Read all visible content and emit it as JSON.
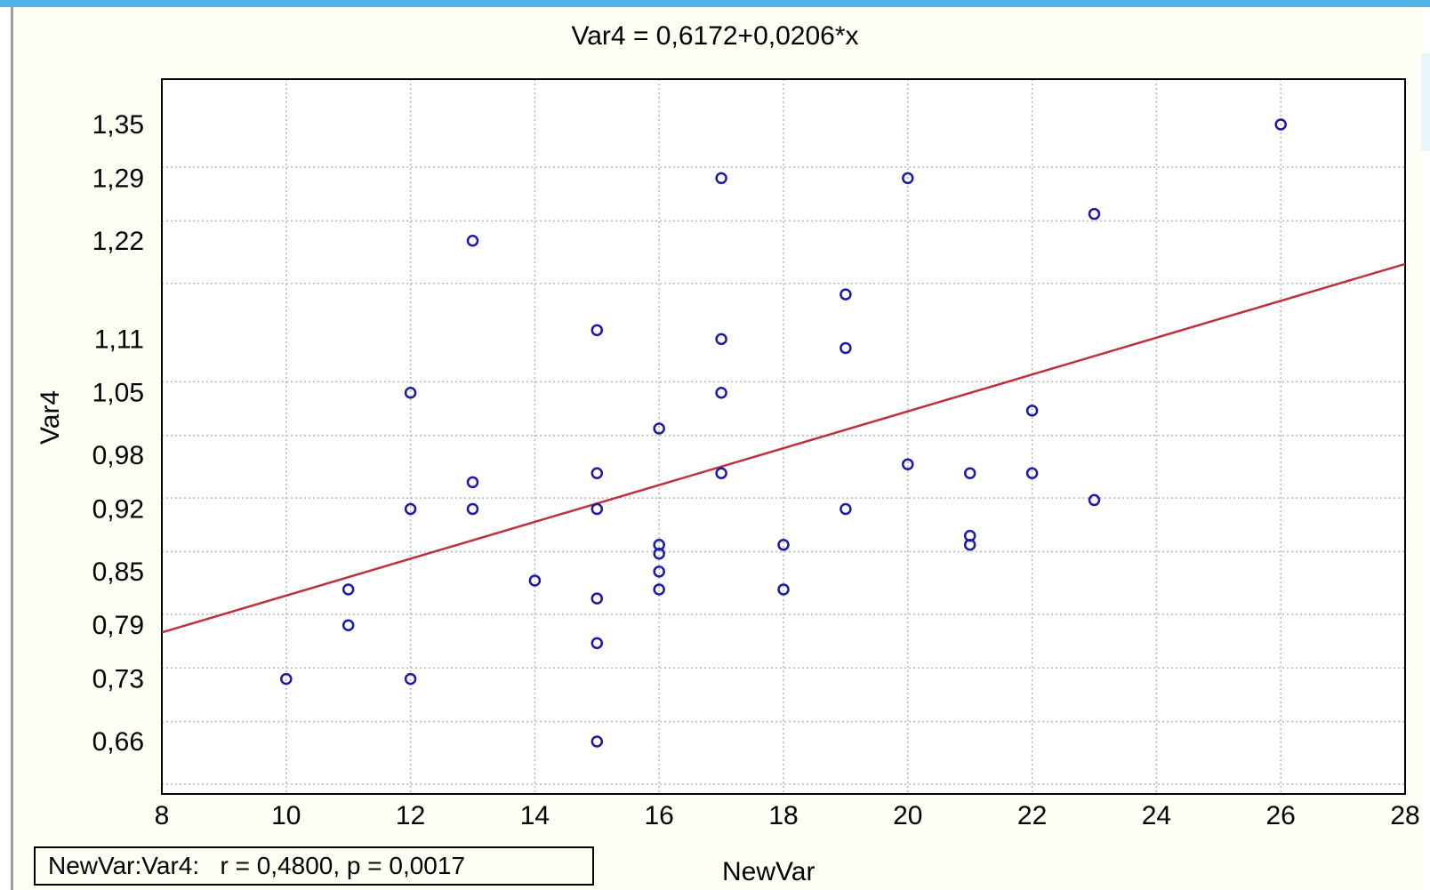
{
  "chart_data": {
    "type": "scatter",
    "title": "Var4 = 0,6172+0,0206*x",
    "xlabel": "NewVar",
    "ylabel": "Var4",
    "xlim": [
      8,
      28
    ],
    "ylim": [
      0.6,
      1.4
    ],
    "x_ticks": [
      "8",
      "10",
      "12",
      "14",
      "16",
      "18",
      "20",
      "22",
      "24",
      "26",
      "28"
    ],
    "x_tick_values": [
      8,
      10,
      12,
      14,
      16,
      18,
      20,
      22,
      24,
      26,
      28
    ],
    "y_ticks": [
      "1,35",
      "1,29",
      "1,22",
      "1,11",
      "1,05",
      "0,98",
      "0,92",
      "0,85",
      "0,79",
      "0,73",
      "0,66"
    ],
    "y_tick_values": [
      1.35,
      1.29,
      1.22,
      1.11,
      1.05,
      0.98,
      0.92,
      0.85,
      0.79,
      0.73,
      0.66
    ],
    "grid": true,
    "regression": {
      "intercept": 0.6172,
      "slope": 0.0206
    },
    "stat_text": "NewVar:Var4:   r = 0,4800, p = 0,0017",
    "points": [
      {
        "x": 10,
        "y": 0.73
      },
      {
        "x": 11,
        "y": 0.83
      },
      {
        "x": 11,
        "y": 0.79
      },
      {
        "x": 12,
        "y": 1.05
      },
      {
        "x": 12,
        "y": 0.92
      },
      {
        "x": 12,
        "y": 0.73
      },
      {
        "x": 13,
        "y": 1.22
      },
      {
        "x": 13,
        "y": 0.95
      },
      {
        "x": 13,
        "y": 0.92
      },
      {
        "x": 14,
        "y": 0.84
      },
      {
        "x": 15,
        "y": 1.12
      },
      {
        "x": 15,
        "y": 0.96
      },
      {
        "x": 15,
        "y": 0.92
      },
      {
        "x": 15,
        "y": 0.82
      },
      {
        "x": 15,
        "y": 0.77
      },
      {
        "x": 15,
        "y": 0.66
      },
      {
        "x": 16,
        "y": 1.01
      },
      {
        "x": 16,
        "y": 0.88
      },
      {
        "x": 16,
        "y": 0.87
      },
      {
        "x": 16,
        "y": 0.85
      },
      {
        "x": 16,
        "y": 0.83
      },
      {
        "x": 17,
        "y": 1.29
      },
      {
        "x": 17,
        "y": 1.11
      },
      {
        "x": 17,
        "y": 1.05
      },
      {
        "x": 17,
        "y": 0.96
      },
      {
        "x": 18,
        "y": 0.88
      },
      {
        "x": 18,
        "y": 0.83
      },
      {
        "x": 19,
        "y": 1.16
      },
      {
        "x": 19,
        "y": 1.1
      },
      {
        "x": 19,
        "y": 0.92
      },
      {
        "x": 20,
        "y": 1.29
      },
      {
        "x": 20,
        "y": 0.97
      },
      {
        "x": 21,
        "y": 0.96
      },
      {
        "x": 21,
        "y": 0.89
      },
      {
        "x": 21,
        "y": 0.88
      },
      {
        "x": 22,
        "y": 1.03
      },
      {
        "x": 22,
        "y": 0.96
      },
      {
        "x": 23,
        "y": 1.25
      },
      {
        "x": 23,
        "y": 0.93
      },
      {
        "x": 26,
        "y": 1.35
      }
    ]
  },
  "colors": {
    "point": "#1a1aa6",
    "regression": "#c0303a",
    "grid": "#b8b8b8",
    "background": "#fffff6"
  }
}
